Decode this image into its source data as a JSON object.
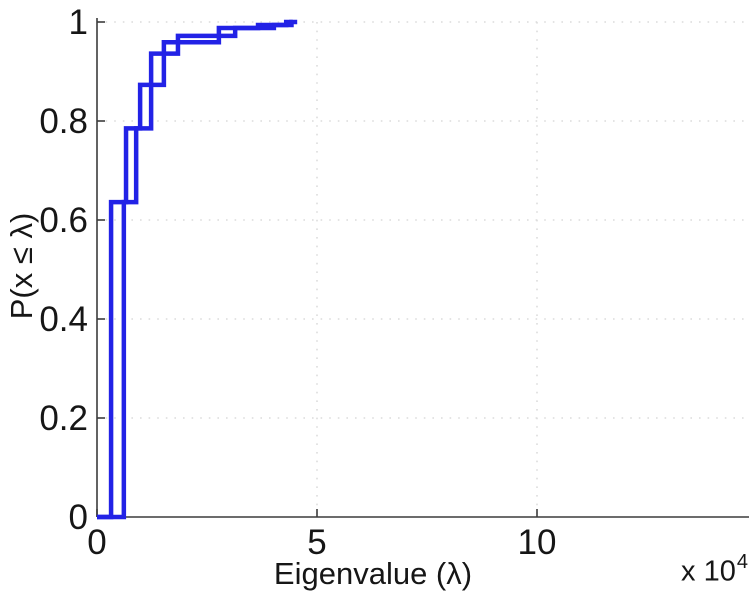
{
  "figure": {
    "xlabel": "Eigenvalue (λ)",
    "ylabel": "P(x ≤ λ)",
    "scale_base": "x 10",
    "scale_exp": "4"
  },
  "colors": {
    "curve": "#2222e6",
    "grid": "#dcdcdc",
    "axis": "#3c3c3c",
    "text": "#161616",
    "background": "#ffffff"
  },
  "chart_data": {
    "type": "line",
    "subtype": "empirical-cdf-stairs",
    "title": "",
    "xlabel": "Eigenvalue (λ)",
    "ylabel": "P(x ≤ λ)",
    "x_scale_factor_label": "x 10^4",
    "x_units_multiplier": 10000,
    "xlim": [
      0,
      15
    ],
    "ylim": [
      0,
      1
    ],
    "x_ticks": [
      0,
      5,
      10
    ],
    "y_ticks": [
      0,
      0.2,
      0.4,
      0.6,
      0.8,
      1
    ],
    "grid": "dotted",
    "legend_position": "none",
    "line_width": 4.5,
    "series": [
      {
        "name": "ecdf-curve-1",
        "start": [
          0,
          0
        ],
        "jumps": [
          [
            0.32,
            0.636
          ],
          [
            0.66,
            0.785
          ],
          [
            0.98,
            0.873
          ],
          [
            1.52,
            0.959
          ],
          [
            2.77,
            0.988
          ],
          [
            3.66,
            0.994
          ],
          [
            4.3,
            1.0
          ]
        ],
        "end_x": 4.45
      },
      {
        "name": "ecdf-curve-2",
        "start": [
          0,
          0
        ],
        "jumps": [
          [
            0.61,
            0.636
          ],
          [
            0.89,
            0.785
          ],
          [
            1.23,
            0.936
          ],
          [
            1.84,
            0.972
          ],
          [
            3.14,
            0.988
          ],
          [
            4.02,
            0.994
          ],
          [
            4.42,
            1.0
          ]
        ],
        "end_x": 4.55
      }
    ]
  }
}
